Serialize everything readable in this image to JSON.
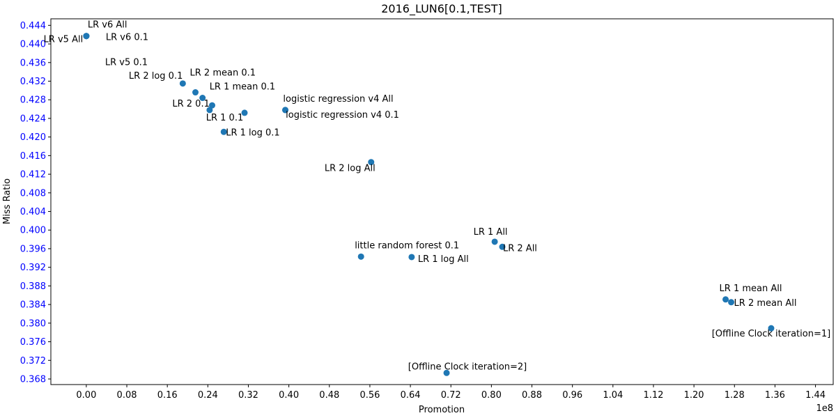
{
  "chart_data": {
    "type": "scatter",
    "title": "2016_LUN6[0.1,TEST]",
    "xlabel": "Promotion",
    "ylabel": "Miss Ratio",
    "x_offset_label": "1e8",
    "xlim": [
      -0.07,
      1.475
    ],
    "ylim": [
      0.3668,
      0.4454
    ],
    "xticks": [
      0.0,
      0.08,
      0.16,
      0.24,
      0.32,
      0.4,
      0.48,
      0.56,
      0.64,
      0.72,
      0.8,
      0.88,
      0.96,
      1.04,
      1.12,
      1.2,
      1.28,
      1.36,
      1.44
    ],
    "xtick_labels": [
      "0.00",
      "0.08",
      "0.16",
      "0.24",
      "0.32",
      "0.40",
      "0.48",
      "0.56",
      "0.64",
      "0.72",
      "0.80",
      "0.88",
      "0.96",
      "1.04",
      "1.12",
      "1.20",
      "1.28",
      "1.36",
      "1.44"
    ],
    "yticks": [
      0.368,
      0.372,
      0.376,
      0.38,
      0.384,
      0.388,
      0.392,
      0.396,
      0.4,
      0.404,
      0.408,
      0.412,
      0.416,
      0.42,
      0.424,
      0.428,
      0.432,
      0.436,
      0.44,
      0.444
    ],
    "ytick_labels": [
      "0.368",
      "0.372",
      "0.376",
      "0.380",
      "0.384",
      "0.388",
      "0.392",
      "0.396",
      "0.400",
      "0.404",
      "0.408",
      "0.412",
      "0.416",
      "0.420",
      "0.424",
      "0.428",
      "0.432",
      "0.436",
      "0.440",
      "0.444"
    ],
    "ytick_color": "#0000ff",
    "marker_color": "#1f77b4",
    "grid": false,
    "points": [
      {
        "label": "LR v6 All",
        "x": 0.0,
        "y": 0.4417,
        "anchor": "start",
        "dx": 2,
        "dy": -12
      },
      {
        "label": "LR v5 All",
        "x": 0.0,
        "y": 0.4417,
        "anchor": "middle",
        "dx": -33,
        "dy": 9
      },
      {
        "label": "LR v6 0.1",
        "x": 0.0,
        "y": 0.4417,
        "anchor": "start",
        "dx": 28,
        "dy": 6
      },
      {
        "label": "LR v5 0.1",
        "x": 0.0,
        "y": 0.4417,
        "anchor": "start",
        "dx": 27,
        "dy": 42
      },
      {
        "label": "LR 2 log 0.1",
        "x": 0.1905,
        "y": 0.4315,
        "anchor": "end",
        "dx": 0,
        "dy": -7
      },
      {
        "label": "LR 2 mean 0.1",
        "x": 0.2155,
        "y": 0.4296,
        "anchor": "start",
        "dx": -8,
        "dy": -24
      },
      {
        "label": "LR 1 mean 0.1",
        "x": 0.2295,
        "y": 0.4284,
        "anchor": "start",
        "dx": 10,
        "dy": -12
      },
      {
        "label": "LR 2 0.1",
        "x": 0.2435,
        "y": 0.4258,
        "anchor": "end",
        "dx": 0,
        "dy": -5
      },
      {
        "label": "LR 1 0.1",
        "x": 0.2485,
        "y": 0.4268,
        "anchor": "middle",
        "dx": 18,
        "dy": 22
      },
      {
        "label": "",
        "x": 0.3125,
        "y": 0.4252,
        "anchor": "start",
        "dx": 0,
        "dy": 0
      },
      {
        "label": "logistic regression v4 All",
        "x": 0.393,
        "y": 0.4258,
        "anchor": "middle",
        "dx": 76,
        "dy": -12
      },
      {
        "label": "logistic regression v4 0.1",
        "x": 0.393,
        "y": 0.4258,
        "anchor": "middle",
        "dx": 82,
        "dy": 11
      },
      {
        "label": "LR 1 log 0.1",
        "x": 0.2715,
        "y": 0.4211,
        "anchor": "start",
        "dx": 3,
        "dy": 5
      },
      {
        "label": "LR 2 log All",
        "x": 0.5625,
        "y": 0.4146,
        "anchor": "end",
        "dx": 6,
        "dy": 13
      },
      {
        "label": "little random forest 0.1",
        "x": 0.5425,
        "y": 0.3943,
        "anchor": "start",
        "dx": -9,
        "dy": -12
      },
      {
        "label": "LR 1 log All",
        "x": 0.6425,
        "y": 0.3942,
        "anchor": "start",
        "dx": 9,
        "dy": 7
      },
      {
        "label": "LR 1 All",
        "x": 0.8065,
        "y": 0.3975,
        "anchor": "middle",
        "dx": -6,
        "dy": -10
      },
      {
        "label": "LR 2 All",
        "x": 0.8215,
        "y": 0.3964,
        "anchor": "start",
        "dx": 1,
        "dy": 6
      },
      {
        "label": "LR 1 mean All",
        "x": 1.2625,
        "y": 0.3851,
        "anchor": "start",
        "dx": -9,
        "dy": -12
      },
      {
        "label": "LR 2 mean All",
        "x": 1.2735,
        "y": 0.3845,
        "anchor": "start",
        "dx": 4,
        "dy": 5
      },
      {
        "label": "[Offline Clock iteration=1]",
        "x": 1.3525,
        "y": 0.3789,
        "anchor": "middle",
        "dx": 0,
        "dy": 12
      },
      {
        "label": "[Offline Clock iteration=2]",
        "x": 0.7115,
        "y": 0.3693,
        "anchor": "middle",
        "dx": 30,
        "dy": -5
      }
    ]
  }
}
